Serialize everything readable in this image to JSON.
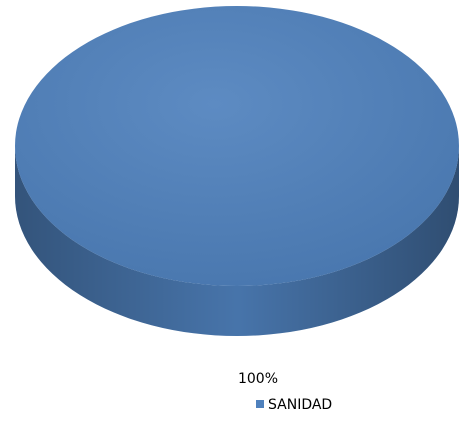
{
  "chart_data": {
    "type": "pie",
    "categories": [
      "SANIDAD"
    ],
    "values": [
      100
    ],
    "value_labels": [
      "100%"
    ],
    "colors": [
      "#4f81bd"
    ],
    "legend": "bottom"
  }
}
